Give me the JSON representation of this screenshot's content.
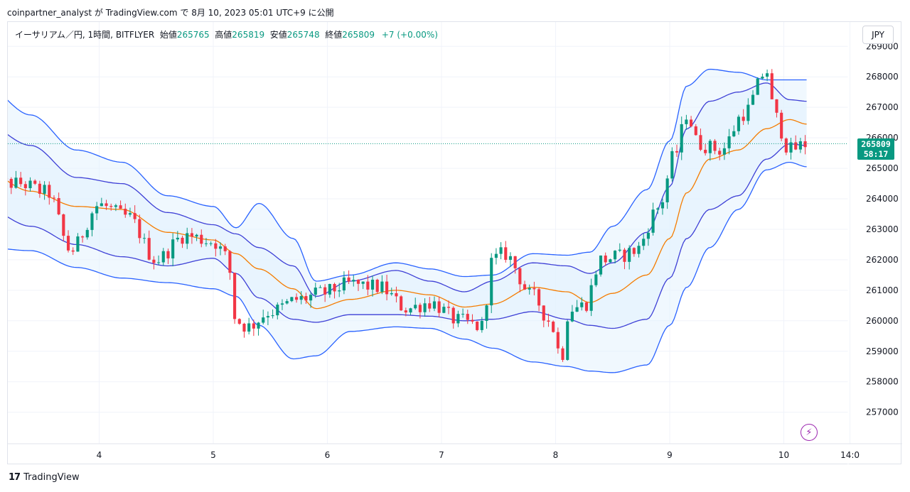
{
  "header": {
    "author_line": "coinpartner_analyst が TradingView.com で 8月 10, 2023 05:01 UTC+9 に公開"
  },
  "legend": {
    "symbol": "イーサリアム／円, 1時間, BITFLYER",
    "open_label": "始値",
    "open_value": "265765",
    "high_label": "高値",
    "high_value": "265819",
    "low_label": "安値",
    "low_value": "265748",
    "close_label": "終値",
    "close_value": "265809",
    "change": "+7 (+0.00%)"
  },
  "currency_button": "JPY",
  "price_tag": {
    "price": "265809",
    "countdown": "58:17"
  },
  "brand": {
    "logo": "17",
    "name": "TradingView"
  },
  "icons": {
    "bolt": "lightning-icon"
  },
  "colors": {
    "up": "#089981",
    "down": "#f23645",
    "band": "#2962ff",
    "band_fill": "#e3f2fd",
    "basis": "#f57c00",
    "inner_band": "#3d3fd6"
  },
  "chart_data": {
    "type": "candlestick",
    "timeframe": "1h",
    "y_axis": {
      "range": [
        256200,
        269100
      ],
      "ticks": [
        257000,
        258000,
        259000,
        260000,
        261000,
        262000,
        263000,
        264000,
        265000,
        266000,
        267000,
        268000,
        269000
      ]
    },
    "x_axis": {
      "labels": [
        {
          "label": "4",
          "day": 4.0
        },
        {
          "label": "5",
          "day": 5.0
        },
        {
          "label": "6",
          "day": 6.0
        },
        {
          "label": "7",
          "day": 7.0
        },
        {
          "label": "8",
          "day": 8.0
        },
        {
          "label": "9",
          "day": 9.0
        },
        {
          "label": "10",
          "day": 10.0
        },
        {
          "label": "14:0",
          "day": 10.58
        }
      ],
      "range_days": [
        3.0,
        10.7
      ]
    },
    "last_price": 265809,
    "bollinger": {
      "anchor_days": [
        3.0,
        3.4,
        3.8,
        4.2,
        4.6,
        5.0,
        5.2,
        5.4,
        5.7,
        5.9,
        6.2,
        6.6,
        6.9,
        7.2,
        7.45,
        7.8,
        8.1,
        8.3,
        8.5,
        8.8,
        9.0,
        9.15,
        9.35,
        9.6,
        9.85,
        10.05,
        10.2
      ],
      "basis": [
        264900,
        264250,
        263750,
        263650,
        262900,
        262650,
        262200,
        261700,
        261050,
        260400,
        260700,
        261000,
        260850,
        260450,
        260550,
        261100,
        260950,
        260600,
        260900,
        261500,
        262700,
        264200,
        265300,
        265600,
        266300,
        266600,
        266450
      ],
      "upper1": [
        266450,
        265750,
        264700,
        264500,
        263550,
        263150,
        262850,
        262400,
        261800,
        260800,
        261300,
        261650,
        261300,
        260950,
        261300,
        261900,
        261800,
        261550,
        261900,
        262900,
        264400,
        266300,
        267200,
        267500,
        267800,
        267250,
        267200
      ],
      "lower1": [
        263700,
        263100,
        262500,
        262100,
        261800,
        262050,
        261550,
        260750,
        260050,
        259950,
        260200,
        260200,
        260150,
        260000,
        260050,
        260300,
        260050,
        259850,
        259750,
        260050,
        261400,
        262700,
        263650,
        264100,
        265300,
        265800,
        265750
      ],
      "upper2": [
        267700,
        266750,
        265600,
        265200,
        264100,
        263750,
        263050,
        263850,
        262700,
        261300,
        261500,
        261900,
        261700,
        261450,
        261500,
        262200,
        262150,
        262250,
        263100,
        264300,
        265900,
        267700,
        268250,
        268150,
        267900,
        267900,
        267900
      ],
      "lower2": [
        262400,
        262300,
        261750,
        261400,
        261250,
        261050,
        260800,
        259850,
        258750,
        258850,
        259650,
        259800,
        259750,
        259400,
        259100,
        258650,
        258500,
        258350,
        258300,
        258550,
        259850,
        261100,
        262400,
        263650,
        264950,
        265200,
        265050
      ]
    },
    "ohlc_anchors": {
      "days": [
        3.0,
        3.3,
        3.55,
        3.75,
        4.0,
        4.25,
        4.5,
        4.75,
        5.0,
        5.12,
        5.2,
        5.3,
        5.5,
        5.75,
        5.95,
        6.2,
        6.45,
        6.7,
        6.9,
        7.15,
        7.35,
        7.45,
        7.55,
        7.8,
        7.95,
        8.05,
        8.12,
        8.25,
        8.4,
        8.55,
        8.7,
        8.9,
        9.05,
        9.15,
        9.25,
        9.45,
        9.65,
        9.85,
        9.92,
        10.05,
        10.2
      ],
      "closes": [
        264500,
        264500,
        264200,
        262300,
        263800,
        263400,
        262000,
        262800,
        262600,
        262100,
        260000,
        259800,
        260300,
        260700,
        260900,
        261200,
        261100,
        260400,
        260600,
        260000,
        259800,
        262000,
        262200,
        260800,
        260000,
        258800,
        260400,
        260500,
        262000,
        262100,
        262300,
        263700,
        265500,
        266800,
        265800,
        265600,
        266800,
        268200,
        266700,
        265600,
        265800
      ]
    }
  }
}
